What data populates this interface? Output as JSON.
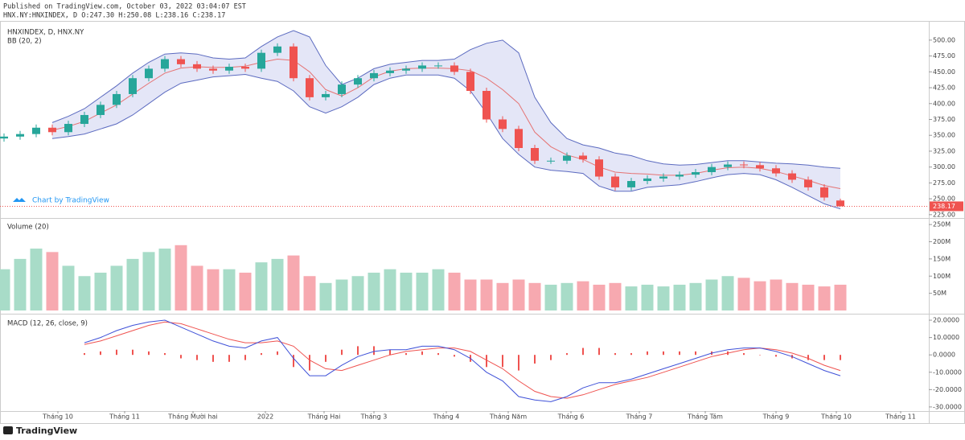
{
  "header": {
    "published": "Published on TradingView.com, October 03, 2022 03:04:07 EST",
    "symbol_line": "HNX.NY:HNXINDEX, D O:247.30 H:250.08 L:238.16 C:238.17",
    "watermark": "Chart by TradingView",
    "brand": "TradingView"
  },
  "chart_data": [
    {
      "type": "candlestick",
      "title": "HNXINDEX, D, HNX.NY",
      "subtitle": "BB (20, 2)",
      "up_color": "#26a69a",
      "down_color": "#ef5350",
      "open": [
        345,
        348,
        352,
        362,
        355,
        368,
        382,
        398,
        415,
        440,
        455,
        470,
        462,
        455,
        452,
        458,
        455,
        480,
        490,
        440,
        410,
        415,
        430,
        440,
        448,
        452,
        455,
        460,
        460,
        450,
        420,
        375,
        360,
        330,
        310,
        310,
        318,
        312,
        285,
        268,
        278,
        282,
        285,
        288,
        292,
        300,
        304,
        303,
        298,
        290,
        280,
        268,
        247.3
      ],
      "high": [
        353,
        357,
        367,
        367,
        373,
        387,
        403,
        420,
        445,
        460,
        475,
        475,
        467,
        460,
        463,
        463,
        485,
        495,
        495,
        445,
        420,
        435,
        445,
        453,
        457,
        460,
        465,
        465,
        465,
        455,
        425,
        380,
        365,
        335,
        315,
        323,
        323,
        317,
        290,
        283,
        287,
        290,
        293,
        297,
        305,
        309,
        309,
        308,
        303,
        295,
        285,
        273,
        250.08
      ],
      "low": [
        340,
        343,
        347,
        350,
        350,
        363,
        377,
        393,
        410,
        435,
        450,
        457,
        450,
        447,
        447,
        450,
        450,
        475,
        435,
        405,
        405,
        410,
        425,
        435,
        443,
        447,
        450,
        455,
        445,
        415,
        370,
        355,
        325,
        305,
        305,
        305,
        307,
        280,
        263,
        263,
        273,
        277,
        280,
        283,
        287,
        295,
        298,
        293,
        285,
        275,
        263,
        247,
        238.16
      ],
      "close": [
        348,
        352,
        362,
        355,
        368,
        382,
        398,
        415,
        440,
        455,
        470,
        462,
        455,
        452,
        458,
        455,
        480,
        490,
        440,
        410,
        415,
        430,
        440,
        448,
        452,
        455,
        460,
        460,
        450,
        420,
        375,
        360,
        330,
        310,
        310,
        318,
        312,
        285,
        268,
        278,
        282,
        285,
        288,
        292,
        300,
        304,
        303,
        298,
        290,
        280,
        268,
        252,
        238.17
      ],
      "bands": {
        "band_color": "#5c6bc0",
        "basis_color": "#e57373",
        "fill": "#d9dbf3",
        "upper": [
          null,
          null,
          null,
          370,
          380,
          392,
          410,
          428,
          448,
          465,
          478,
          480,
          478,
          472,
          470,
          472,
          490,
          505,
          515,
          505,
          460,
          430,
          440,
          455,
          462,
          465,
          468,
          468,
          470,
          485,
          495,
          500,
          480,
          410,
          370,
          345,
          335,
          330,
          322,
          318,
          310,
          305,
          303,
          304,
          307,
          310,
          310,
          308,
          306,
          305,
          303,
          300,
          298
        ],
        "basis": [
          null,
          null,
          null,
          358,
          364,
          372,
          385,
          398,
          415,
          432,
          448,
          456,
          458,
          457,
          457,
          459,
          465,
          470,
          468,
          450,
          422,
          412,
          425,
          442,
          451,
          455,
          456,
          456,
          455,
          452,
          440,
          422,
          400,
          355,
          332,
          319,
          312,
          300,
          292,
          290,
          289,
          287,
          287,
          290,
          295,
          299,
          300,
          298,
          293,
          286,
          279,
          271,
          266
        ],
        "lower": [
          null,
          null,
          null,
          345,
          348,
          352,
          360,
          368,
          382,
          400,
          418,
          432,
          437,
          442,
          444,
          446,
          440,
          435,
          420,
          395,
          385,
          395,
          410,
          430,
          440,
          445,
          445,
          445,
          440,
          420,
          385,
          345,
          320,
          300,
          295,
          293,
          290,
          270,
          262,
          262,
          268,
          270,
          272,
          277,
          283,
          288,
          290,
          288,
          280,
          268,
          255,
          242,
          234
        ]
      },
      "xlim": [
        -0.25,
        57.5
      ],
      "ylim": [
        221,
        529
      ],
      "yticks": [
        {
          "value": 225,
          "label": "225.00"
        },
        {
          "value": 250,
          "label": "250.00"
        },
        {
          "value": 275,
          "label": "275.00"
        },
        {
          "value": 300,
          "label": "300.00"
        },
        {
          "value": 325,
          "label": "325.00"
        },
        {
          "value": 350,
          "label": "350.00"
        },
        {
          "value": 375,
          "label": "375.00"
        },
        {
          "value": 400,
          "label": "400.00"
        },
        {
          "value": 425,
          "label": "425.00"
        },
        {
          "value": 450,
          "label": "450.00"
        },
        {
          "value": 475,
          "label": "475.00"
        },
        {
          "value": 500,
          "label": "500.00"
        }
      ]
    },
    {
      "type": "bar",
      "title": "Volume (20)",
      "up_color": "#a8dcc8",
      "down_color": "#f7a9b0",
      "values": [
        120000000,
        150000000,
        180000000,
        170000000,
        130000000,
        100000000,
        110000000,
        130000000,
        150000000,
        170000000,
        180000000,
        190000000,
        130000000,
        120000000,
        120000000,
        110000000,
        140000000,
        150000000,
        160000000,
        100000000,
        80000000,
        90000000,
        100000000,
        110000000,
        120000000,
        110000000,
        110000000,
        120000000,
        110000000,
        90000000,
        90000000,
        80000000,
        90000000,
        80000000,
        75000000,
        80000000,
        85000000,
        75000000,
        80000000,
        70000000,
        75000000,
        70000000,
        75000000,
        80000000,
        90000000,
        100000000,
        95000000,
        85000000,
        90000000,
        80000000,
        75000000,
        70000000,
        75000000
      ],
      "xlim": [
        -0.25,
        57.5
      ],
      "ylim": [
        0,
        262000000
      ],
      "yticks": [
        {
          "value": 50000000,
          "label": "50M"
        },
        {
          "value": 100000000,
          "label": "100M"
        },
        {
          "value": 150000000,
          "label": "150M"
        },
        {
          "value": 200000000,
          "label": "200M"
        },
        {
          "value": 250000000,
          "label": "250M"
        }
      ]
    },
    {
      "type": "macd",
      "title": "MACD (12, 26, close, 9)",
      "macd_color": "#3f51d8",
      "signal_color": "#ef5350",
      "histogram_color": "#ef5350",
      "macd": [
        null,
        null,
        null,
        null,
        null,
        7,
        10,
        14,
        17,
        19,
        20,
        16,
        12,
        8,
        5,
        4,
        8,
        10,
        -2,
        -12,
        -12,
        -6,
        -1,
        2,
        3,
        3,
        5,
        5,
        3,
        -2,
        -10,
        -15,
        -24,
        -26,
        -27,
        -24,
        -19,
        -16,
        -16,
        -14,
        -11,
        -8,
        -5,
        -2,
        1,
        3,
        4,
        4,
        2,
        -1,
        -5,
        -9,
        -12
      ],
      "signal": [
        null,
        null,
        null,
        null,
        null,
        6,
        8,
        11,
        14,
        17,
        19,
        18,
        15,
        12,
        9,
        7,
        7,
        8,
        5,
        -3,
        -8,
        -9,
        -6,
        -3,
        0,
        2,
        3,
        4,
        4,
        2,
        -3,
        -8,
        -15,
        -21,
        -24,
        -25,
        -23,
        -20,
        -17,
        -15,
        -13,
        -10,
        -7,
        -4,
        -1,
        1,
        3,
        4,
        3,
        1,
        -2,
        -6,
        -9
      ],
      "histogram": [
        null,
        null,
        null,
        null,
        null,
        1,
        2,
        3,
        3,
        2,
        1,
        -2,
        -3,
        -4,
        -4,
        -3,
        1,
        2,
        -7,
        -9,
        -4,
        3,
        5,
        5,
        3,
        1,
        2,
        1,
        -1,
        -4,
        -7,
        -7,
        -9,
        -5,
        -3,
        1,
        4,
        4,
        1,
        1,
        2,
        2,
        2,
        2,
        2,
        2,
        1,
        0,
        -1,
        -2,
        -3,
        -3,
        -3
      ],
      "xlim": [
        -0.25,
        57.5
      ],
      "ylim": [
        -31.9,
        22.8
      ],
      "yticks": [
        {
          "value": -30,
          "label": "-30.0000"
        },
        {
          "value": -20,
          "label": "-20.0000"
        },
        {
          "value": -10,
          "label": "-10.0000"
        },
        {
          "value": 0,
          "label": "0.0000"
        },
        {
          "value": 10,
          "label": "10.0000"
        },
        {
          "value": 20,
          "label": "20.0000"
        }
      ],
      "xticks": [
        {
          "value": 3.35,
          "label": "Tháng 10"
        },
        {
          "value": 7.5,
          "label": "Tháng 11"
        },
        {
          "value": 11.75,
          "label": "Tháng Mười hai"
        },
        {
          "value": 16.25,
          "label": "2022"
        },
        {
          "value": 19.9,
          "label": "Tháng Hai"
        },
        {
          "value": 23,
          "label": "Tháng 3"
        },
        {
          "value": 27.5,
          "label": "Tháng 4"
        },
        {
          "value": 31.35,
          "label": "Tháng Năm"
        },
        {
          "value": 35.25,
          "label": "Tháng 6"
        },
        {
          "value": 39.5,
          "label": "Tháng 7"
        },
        {
          "value": 43.6,
          "label": "Tháng Tám"
        },
        {
          "value": 48,
          "label": "Tháng 9"
        },
        {
          "value": 51.75,
          "label": "Tháng 10"
        },
        {
          "value": 55.75,
          "label": "Tháng 11"
        }
      ]
    }
  ]
}
